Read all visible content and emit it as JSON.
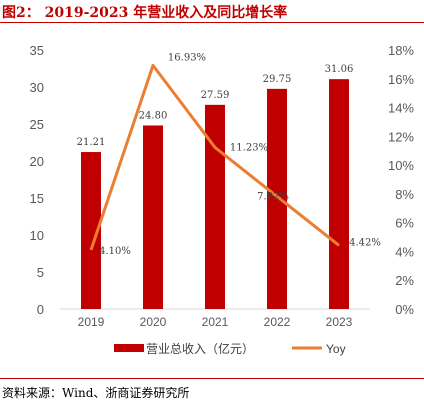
{
  "header": {
    "title": "图2： 2019-2023 年营业收入及同比增长率"
  },
  "footer": {
    "source": "资料来源：Wind、浙商证券研究所"
  },
  "colors": {
    "bar": "#c00000",
    "line": "#ed7d31",
    "title": "#c00000",
    "axis": "#d9d9d9"
  },
  "chart_data": {
    "type": "bar+line",
    "categories": [
      "2019",
      "2020",
      "2021",
      "2022",
      "2023"
    ],
    "series": [
      {
        "name": "营业总收入（亿元）",
        "type": "bar",
        "axis": "left",
        "values": [
          21.21,
          24.8,
          27.59,
          29.75,
          31.06
        ],
        "labels": [
          "21.21",
          "24.80",
          "27.59",
          "29.75",
          "31.06"
        ]
      },
      {
        "name": "Yoy",
        "type": "line",
        "axis": "right",
        "values": [
          4.1,
          16.93,
          11.23,
          7.82,
          4.42
        ],
        "labels": [
          "4.10%",
          "16.93%",
          "11.23%",
          "7.82%",
          "4.42%"
        ]
      }
    ],
    "left_axis": {
      "min": 0,
      "max": 35,
      "ticks": [
        "0",
        "5",
        "10",
        "15",
        "20",
        "25",
        "30",
        "35"
      ]
    },
    "right_axis": {
      "min": 0,
      "max": 18,
      "ticks": [
        "0%",
        "2%",
        "4%",
        "6%",
        "8%",
        "10%",
        "12%",
        "14%",
        "16%",
        "18%"
      ]
    },
    "grid": false,
    "legend": "bottom"
  }
}
